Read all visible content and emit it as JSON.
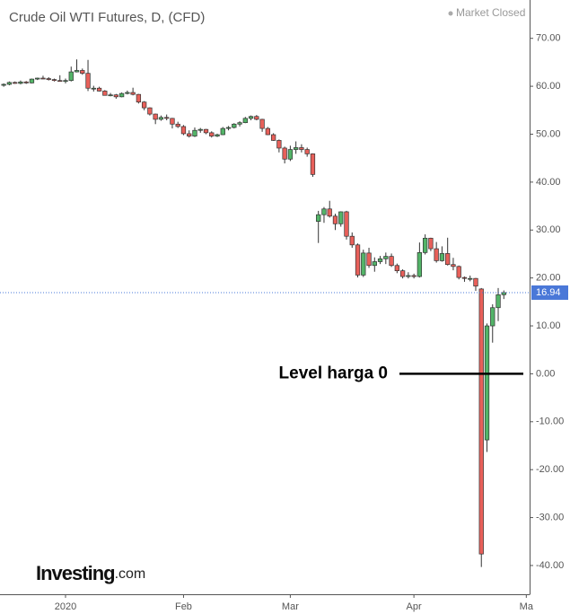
{
  "chart_data": {
    "type": "candlestick",
    "title": "Crude Oil WTI Futures, D, (CFD)",
    "status": "Market Closed",
    "logo": {
      "name": "Investing",
      "suffix": ".com"
    },
    "categories": [
      null,
      null,
      null,
      null,
      null,
      null,
      null,
      null,
      null,
      null,
      null,
      "2020",
      null,
      null,
      null,
      null,
      null,
      null,
      null,
      null,
      null,
      null,
      null,
      null,
      null,
      null,
      null,
      null,
      null,
      null,
      null,
      null,
      "Feb",
      null,
      null,
      null,
      null,
      null,
      null,
      null,
      null,
      null,
      null,
      null,
      null,
      null,
      null,
      null,
      null,
      null,
      null,
      "Mar",
      null,
      null,
      null,
      null,
      null,
      null,
      null,
      null,
      null,
      null,
      null,
      null,
      null,
      null,
      null,
      null,
      null,
      null,
      null,
      null,
      null,
      "Apr",
      null,
      null,
      null,
      null,
      null,
      null,
      null,
      null,
      null,
      null,
      null,
      null,
      null,
      null,
      null,
      null,
      null,
      null,
      null,
      "Ma"
    ],
    "open": [
      60.2,
      60.4,
      60.8,
      60.6,
      60.9,
      60.7,
      61.5,
      61.7,
      61.6,
      61.4,
      61.2,
      61.2,
      61.2,
      63.0,
      63.3,
      62.7,
      59.6,
      59.6,
      59.0,
      58.1,
      58.2,
      57.8,
      58.5,
      58.7,
      58.3,
      56.7,
      55.5,
      54.2,
      53.1,
      53.5,
      53.3,
      52.1,
      51.6,
      50.1,
      49.6,
      50.8,
      51.0,
      50.3,
      49.6,
      49.9,
      51.2,
      51.4,
      52.1,
      52.4,
      53.3,
      53.7,
      53.1,
      51.2,
      49.9,
      48.7,
      47.1,
      44.8,
      46.8,
      47.2,
      46.8,
      45.9,
      31.8,
      33.2,
      34.4,
      32.9,
      31.3,
      33.8,
      28.7,
      26.9,
      20.6,
      25.2,
      22.6,
      23.4,
      24.0,
      24.5,
      22.6,
      21.5,
      20.3,
      20.5,
      20.3,
      25.3,
      28.3,
      26.1,
      23.6,
      25.1,
      22.8,
      22.4,
      20.1,
      19.9,
      19.9,
      17.7,
      -13.8,
      10.0,
      13.8,
      16.5,
      null,
      null,
      null,
      null
    ],
    "high": [
      60.6,
      61.0,
      61.0,
      61.2,
      61.1,
      61.6,
      61.8,
      62.2,
      61.9,
      61.6,
      62.3,
      61.6,
      64.1,
      65.6,
      63.7,
      65.5,
      60.1,
      59.9,
      59.2,
      58.6,
      58.4,
      58.7,
      59.1,
      59.7,
      58.4,
      56.9,
      55.6,
      54.3,
      53.9,
      54.1,
      53.4,
      52.6,
      51.9,
      50.8,
      51.4,
      51.3,
      51.1,
      50.6,
      50.1,
      51.5,
      51.7,
      52.3,
      52.7,
      53.6,
      53.9,
      54.0,
      53.2,
      51.5,
      50.2,
      48.9,
      47.4,
      47.6,
      48.5,
      47.9,
      47.2,
      46.0,
      34.0,
      34.8,
      36.1,
      33.4,
      33.9,
      34.0,
      29.5,
      27.2,
      25.9,
      26.3,
      24.3,
      24.6,
      25.3,
      25.1,
      23.0,
      21.8,
      21.2,
      20.9,
      27.4,
      29.1,
      28.4,
      27.5,
      26.6,
      28.4,
      24.2,
      22.6,
      20.3,
      20.5,
      20.0,
      17.9,
      10.5,
      14.5,
      17.9,
      17.4,
      null,
      null,
      null,
      null
    ],
    "low": [
      59.9,
      60.2,
      60.5,
      60.4,
      60.5,
      60.6,
      61.3,
      61.5,
      61.2,
      61.0,
      61.1,
      60.6,
      61.0,
      62.9,
      62.4,
      59.0,
      58.9,
      58.9,
      58.1,
      57.9,
      57.4,
      57.7,
      58.3,
      58.1,
      56.4,
      55.0,
      53.9,
      52.1,
      52.8,
      52.9,
      51.2,
      51.3,
      49.8,
      49.3,
      49.4,
      50.3,
      50.0,
      49.3,
      49.4,
      49.8,
      50.8,
      51.2,
      51.6,
      52.3,
      52.9,
      52.9,
      50.5,
      49.8,
      48.6,
      46.2,
      43.9,
      44.4,
      45.9,
      46.2,
      45.3,
      41.1,
      27.3,
      31.5,
      32.6,
      30.0,
      30.7,
      28.0,
      26.3,
      20.1,
      20.2,
      22.1,
      21.3,
      22.9,
      22.9,
      22.3,
      21.0,
      19.9,
      19.9,
      19.9,
      20.1,
      24.9,
      25.6,
      23.2,
      23.4,
      22.6,
      21.6,
      19.7,
      19.2,
      19.3,
      17.3,
      -40.3,
      -16.3,
      6.5,
      11.0,
      15.6,
      null,
      null,
      null,
      null
    ],
    "close": [
      60.4,
      60.8,
      60.6,
      60.9,
      60.7,
      61.5,
      61.7,
      61.6,
      61.4,
      61.2,
      61.1,
      61.2,
      63.0,
      63.3,
      62.7,
      59.6,
      59.6,
      59.0,
      58.1,
      58.2,
      57.8,
      58.5,
      58.7,
      58.3,
      56.7,
      55.5,
      54.2,
      53.1,
      53.5,
      53.3,
      52.1,
      51.6,
      50.1,
      49.6,
      50.8,
      51.0,
      50.3,
      49.6,
      49.9,
      51.2,
      51.4,
      52.1,
      52.4,
      53.3,
      53.7,
      53.1,
      51.2,
      49.9,
      48.7,
      47.1,
      44.8,
      46.8,
      47.2,
      46.8,
      45.9,
      41.6,
      33.2,
      34.4,
      32.9,
      31.3,
      33.8,
      28.7,
      26.9,
      20.6,
      25.2,
      22.6,
      23.4,
      24.0,
      24.5,
      22.6,
      21.5,
      20.3,
      20.5,
      20.3,
      25.3,
      28.3,
      26.1,
      23.6,
      25.1,
      22.8,
      22.4,
      20.1,
      19.9,
      19.9,
      18.3,
      -37.6,
      10.0,
      13.8,
      16.5,
      16.94,
      null,
      null,
      null,
      null
    ],
    "up_color": "#53b468",
    "down_color": "#e8605a",
    "last_price": 16.94,
    "last_price_color": "#4a78d8",
    "annotation": {
      "text": "Level harga 0",
      "value": 0
    },
    "ylim": [
      -46,
      78
    ],
    "yticks": [
      {
        "value": 70,
        "label": "70.00"
      },
      {
        "value": 60,
        "label": "60.00"
      },
      {
        "value": 50,
        "label": "50.00"
      },
      {
        "value": 40,
        "label": "40.00"
      },
      {
        "value": 30,
        "label": "30.00"
      },
      {
        "value": 20,
        "label": "20.00"
      },
      {
        "value": 10,
        "label": "10.00"
      },
      {
        "value": 0,
        "label": "0.00"
      },
      {
        "value": -10,
        "label": "-10.00"
      },
      {
        "value": -20,
        "label": "-20.00"
      },
      {
        "value": -30,
        "label": "-30.00"
      },
      {
        "value": -40,
        "label": "-40.00"
      }
    ],
    "grid": false
  }
}
